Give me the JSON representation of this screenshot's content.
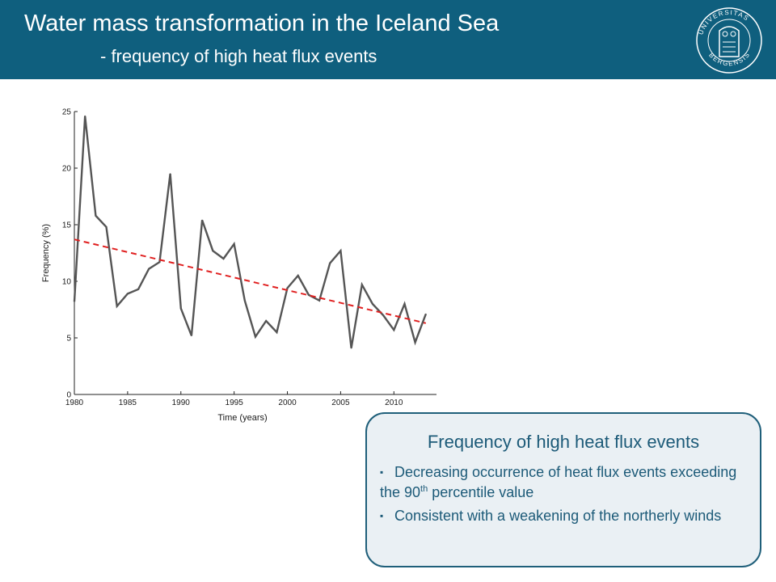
{
  "slide": {
    "title": "Water mass transformation in the Iceland Sea",
    "subtitle": "- frequency of high heat flux events",
    "logo_text": "UNIVERSITAS BERGENSIS"
  },
  "colors": {
    "header_bg": "#0f5f7e",
    "line": "#555555",
    "trend": "#e02020",
    "box_border": "#1f5f7a",
    "box_bg": "#eaf0f4",
    "box_text": "#1c5a78"
  },
  "info_box": {
    "title": "Frequency of high heat flux events",
    "bullet_icon": "square-bullet-icon",
    "bullets": [
      {
        "before": "Decreasing occurrence of heat flux events exceeding the 90",
        "sup": "th",
        "after": " percentile value"
      },
      {
        "before": "Consistent with a weakening of the northerly winds",
        "sup": "",
        "after": ""
      }
    ]
  },
  "chart_data": {
    "type": "line",
    "title": "",
    "xlabel": "Time (years)",
    "ylabel": "Frequency (%)",
    "xlim": [
      1980,
      2014
    ],
    "ylim": [
      0,
      25
    ],
    "xticks": [
      1980,
      1985,
      1990,
      1995,
      2000,
      2005,
      2010
    ],
    "yticks": [
      0,
      5,
      10,
      15,
      20,
      25
    ],
    "grid": false,
    "legend": "none",
    "series": [
      {
        "style": "solid",
        "x": [
          1980,
          1981,
          1982,
          1983,
          1984,
          1985,
          1986,
          1987,
          1988,
          1989,
          1990,
          1991,
          1992,
          1993,
          1994,
          1995,
          1996,
          1997,
          1998,
          1999,
          2000,
          2001,
          2002,
          2003,
          2004,
          2005,
          2006,
          2007,
          2008,
          2009,
          2010,
          2011,
          2012,
          2013
        ],
        "y": [
          8.2,
          24.6,
          15.8,
          14.8,
          7.8,
          8.9,
          9.3,
          11.1,
          11.7,
          19.5,
          7.6,
          5.2,
          15.4,
          12.7,
          12.0,
          13.3,
          8.3,
          5.1,
          6.5,
          5.5,
          9.4,
          10.5,
          8.8,
          8.3,
          11.6,
          12.7,
          4.1,
          9.7,
          8.0,
          7.0,
          5.7,
          8.0,
          4.6,
          7.1
        ]
      },
      {
        "style": "dashed-trend",
        "x": [
          1980,
          2013
        ],
        "y": [
          13.7,
          6.3
        ]
      }
    ]
  }
}
